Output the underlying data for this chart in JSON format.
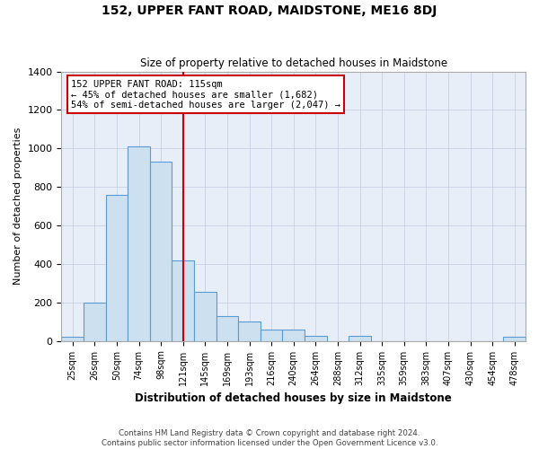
{
  "title": "152, UPPER FANT ROAD, MAIDSTONE, ME16 8DJ",
  "subtitle": "Size of property relative to detached houses in Maidstone",
  "xlabel": "Distribution of detached houses by size in Maidstone",
  "ylabel": "Number of detached properties",
  "footnote1": "Contains HM Land Registry data © Crown copyright and database right 2024.",
  "footnote2": "Contains public sector information licensed under the Open Government Licence v3.0.",
  "bar_labels": [
    "25sqm",
    "26sqm",
    "50sqm",
    "74sqm",
    "98sqm",
    "121sqm",
    "145sqm",
    "169sqm",
    "193sqm",
    "216sqm",
    "240sqm",
    "264sqm",
    "288sqm",
    "312sqm",
    "335sqm",
    "359sqm",
    "383sqm",
    "407sqm",
    "430sqm",
    "454sqm",
    "478sqm"
  ],
  "bar_values": [
    20,
    200,
    760,
    1010,
    930,
    420,
    255,
    130,
    100,
    60,
    60,
    25,
    0,
    25,
    0,
    0,
    0,
    0,
    0,
    0,
    20
  ],
  "bar_color": "#cce0f0",
  "bar_edgecolor": "#5b9bd5",
  "ylim": [
    0,
    1400
  ],
  "yticks": [
    0,
    200,
    400,
    600,
    800,
    1000,
    1200,
    1400
  ],
  "property_line_x": 5.0,
  "annotation_title": "152 UPPER FANT ROAD: 115sqm",
  "annotation_line1": "← 45% of detached houses are smaller (1,682)",
  "annotation_line2": "54% of semi-detached houses are larger (2,047) →",
  "vline_color": "#cc0000",
  "annotation_box_facecolor": "#ffffff",
  "annotation_box_edgecolor": "#cc0000",
  "background_color": "#e8eef8",
  "grid_color": "#c0cce0",
  "fig_width": 6.0,
  "fig_height": 5.0,
  "dpi": 100
}
